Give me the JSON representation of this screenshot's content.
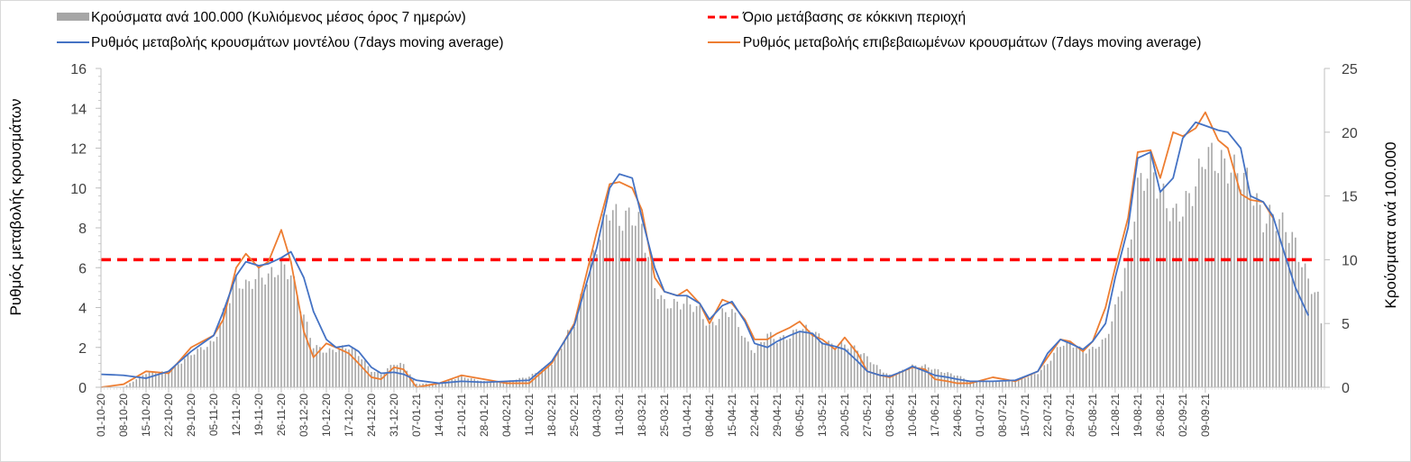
{
  "chart_data": {
    "type": "bar+line",
    "legend_position": "top",
    "grid": false,
    "x_tick_labels": [
      "01-10-20",
      "08-10-20",
      "15-10-20",
      "22-10-20",
      "29-10-20",
      "05-11-20",
      "12-11-20",
      "19-11-20",
      "26-11-20",
      "03-12-20",
      "10-12-20",
      "17-12-20",
      "24-12-20",
      "31-12-20",
      "07-01-21",
      "14-01-21",
      "21-01-21",
      "28-01-21",
      "04-02-21",
      "11-02-21",
      "18-02-21",
      "25-02-21",
      "04-03-21",
      "11-03-21",
      "18-03-21",
      "25-03-21",
      "01-04-21",
      "08-04-21",
      "15-04-21",
      "22-04-21",
      "29-04-21",
      "06-05-21",
      "13-05-21",
      "20-05-21",
      "27-05-21",
      "03-06-21",
      "10-06-21",
      "17-06-21",
      "24-06-21",
      "01-07-21",
      "08-07-21",
      "15-07-21",
      "22-07-21",
      "29-07-21",
      "05-08-21",
      "12-08-21",
      "19-08-21",
      "26-08-21",
      "02-09-21",
      "09-09-21"
    ],
    "y_left": {
      "label": "Ρυθμός μεταβολής κρουσμάτων",
      "min": 0,
      "max": 16,
      "ticks": [
        0,
        2,
        4,
        6,
        8,
        10,
        12,
        14,
        16
      ]
    },
    "y_right": {
      "label": "Κρούσματα ανά 100.000",
      "min": 0,
      "max": 25,
      "ticks": [
        0,
        5,
        10,
        15,
        20,
        25
      ]
    },
    "series": [
      {
        "name": "Κρούσματα ανά 100.000 (Κυλιόμενος μέσος όρος 7 ημερών)",
        "kind": "bar",
        "axis": "right",
        "color": "#a6a6a6",
        "points": [
          [
            0,
            0.0
          ],
          [
            7,
            0.0
          ],
          [
            14,
            1.2
          ],
          [
            21,
            1.3
          ],
          [
            28,
            2.8
          ],
          [
            35,
            3.8
          ],
          [
            38,
            6.2
          ],
          [
            42,
            9.0
          ],
          [
            45,
            8.5
          ],
          [
            49,
            9.4
          ],
          [
            52,
            9.3
          ],
          [
            56,
            10.2
          ],
          [
            59,
            9.6
          ],
          [
            63,
            6.0
          ],
          [
            66,
            3.5
          ],
          [
            70,
            3.0
          ],
          [
            73,
            3.2
          ],
          [
            77,
            3.4
          ],
          [
            80,
            2.8
          ],
          [
            84,
            1.4
          ],
          [
            87,
            1.1
          ],
          [
            91,
            2.0
          ],
          [
            94,
            1.9
          ],
          [
            98,
            0.3
          ],
          [
            105,
            0.3
          ],
          [
            112,
            0.9
          ],
          [
            119,
            0.5
          ],
          [
            126,
            0.5
          ],
          [
            133,
            0.9
          ],
          [
            140,
            2.0
          ],
          [
            147,
            5.5
          ],
          [
            154,
            12.0
          ],
          [
            158,
            15.2
          ],
          [
            161,
            14.0
          ],
          [
            165,
            14.5
          ],
          [
            168,
            13.5
          ],
          [
            172,
            8.5
          ],
          [
            175,
            7.0
          ],
          [
            179,
            7.0
          ],
          [
            182,
            7.2
          ],
          [
            186,
            6.5
          ],
          [
            189,
            5.0
          ],
          [
            193,
            6.2
          ],
          [
            196,
            6.5
          ],
          [
            200,
            4.0
          ],
          [
            203,
            3.0
          ],
          [
            207,
            4.5
          ],
          [
            210,
            4.0
          ],
          [
            214,
            4.3
          ],
          [
            217,
            5.0
          ],
          [
            221,
            4.8
          ],
          [
            224,
            4.0
          ],
          [
            228,
            3.4
          ],
          [
            231,
            3.6
          ],
          [
            235,
            3.2
          ],
          [
            238,
            2.5
          ],
          [
            242,
            1.5
          ],
          [
            245,
            1.0
          ],
          [
            249,
            1.4
          ],
          [
            252,
            1.8
          ],
          [
            256,
            1.8
          ],
          [
            259,
            1.5
          ],
          [
            263,
            1.2
          ],
          [
            266,
            1.0
          ],
          [
            270,
            0.5
          ],
          [
            277,
            0.5
          ],
          [
            284,
            0.5
          ],
          [
            291,
            1.2
          ],
          [
            294,
            2.0
          ],
          [
            298,
            3.6
          ],
          [
            301,
            3.8
          ],
          [
            305,
            3.0
          ],
          [
            308,
            3.2
          ],
          [
            312,
            4.0
          ],
          [
            315,
            6.5
          ],
          [
            319,
            11.0
          ],
          [
            322,
            16.8
          ],
          [
            326,
            18.6
          ],
          [
            329,
            16.5
          ],
          [
            333,
            14.5
          ],
          [
            336,
            15.0
          ],
          [
            340,
            17.0
          ],
          [
            343,
            19.8
          ],
          [
            347,
            19.0
          ],
          [
            350,
            18.5
          ],
          [
            354,
            18.0
          ],
          [
            357,
            17.0
          ],
          [
            361,
            14.0
          ],
          [
            364,
            14.5
          ],
          [
            368,
            13.5
          ],
          [
            371,
            12.0
          ],
          [
            375,
            9.0
          ],
          [
            378,
            7.5
          ],
          [
            379,
            5.5
          ]
        ]
      },
      {
        "name": "Ρυθμός μεταβολής κρουσμάτων μοντέλου (7days moving average)",
        "kind": "line",
        "axis": "left",
        "color": "#4472c4",
        "points": [
          [
            0,
            0.65
          ],
          [
            7,
            0.6
          ],
          [
            14,
            0.45
          ],
          [
            21,
            0.8
          ],
          [
            28,
            1.8
          ],
          [
            35,
            2.6
          ],
          [
            38,
            3.8
          ],
          [
            42,
            5.6
          ],
          [
            45,
            6.3
          ],
          [
            49,
            6.1
          ],
          [
            52,
            6.2
          ],
          [
            56,
            6.5
          ],
          [
            59,
            6.8
          ],
          [
            63,
            5.5
          ],
          [
            66,
            3.8
          ],
          [
            70,
            2.4
          ],
          [
            73,
            2.0
          ],
          [
            77,
            2.1
          ],
          [
            80,
            1.8
          ],
          [
            84,
            1.0
          ],
          [
            87,
            0.7
          ],
          [
            91,
            0.75
          ],
          [
            94,
            0.65
          ],
          [
            98,
            0.35
          ],
          [
            105,
            0.2
          ],
          [
            112,
            0.3
          ],
          [
            119,
            0.25
          ],
          [
            126,
            0.3
          ],
          [
            133,
            0.35
          ],
          [
            140,
            1.3
          ],
          [
            147,
            3.1
          ],
          [
            154,
            7.0
          ],
          [
            158,
            10.0
          ],
          [
            161,
            10.7
          ],
          [
            165,
            10.5
          ],
          [
            168,
            8.5
          ],
          [
            172,
            6.0
          ],
          [
            175,
            4.8
          ],
          [
            179,
            4.6
          ],
          [
            182,
            4.6
          ],
          [
            186,
            4.2
          ],
          [
            189,
            3.4
          ],
          [
            193,
            4.1
          ],
          [
            196,
            4.3
          ],
          [
            200,
            3.3
          ],
          [
            203,
            2.2
          ],
          [
            207,
            2.0
          ],
          [
            210,
            2.3
          ],
          [
            214,
            2.6
          ],
          [
            217,
            2.8
          ],
          [
            221,
            2.7
          ],
          [
            224,
            2.2
          ],
          [
            228,
            2.05
          ],
          [
            231,
            1.9
          ],
          [
            235,
            1.3
          ],
          [
            238,
            0.8
          ],
          [
            242,
            0.6
          ],
          [
            245,
            0.55
          ],
          [
            249,
            0.8
          ],
          [
            252,
            1.05
          ],
          [
            256,
            0.8
          ],
          [
            259,
            0.6
          ],
          [
            263,
            0.5
          ],
          [
            266,
            0.4
          ],
          [
            270,
            0.3
          ],
          [
            277,
            0.3
          ],
          [
            284,
            0.35
          ],
          [
            291,
            0.8
          ],
          [
            294,
            1.7
          ],
          [
            298,
            2.4
          ],
          [
            301,
            2.2
          ],
          [
            305,
            1.9
          ],
          [
            308,
            2.3
          ],
          [
            312,
            3.2
          ],
          [
            315,
            5.5
          ],
          [
            319,
            8.0
          ],
          [
            322,
            11.5
          ],
          [
            326,
            11.8
          ],
          [
            329,
            9.8
          ],
          [
            333,
            10.5
          ],
          [
            336,
            12.5
          ],
          [
            340,
            13.3
          ],
          [
            347,
            12.9
          ],
          [
            350,
            12.8
          ],
          [
            354,
            12.0
          ],
          [
            357,
            9.6
          ],
          [
            361,
            9.3
          ],
          [
            364,
            8.6
          ],
          [
            368,
            6.5
          ],
          [
            371,
            5.0
          ],
          [
            375,
            3.6
          ]
        ]
      },
      {
        "name": "Ρυθμός μεταβολής επιβεβαιωμένων κρουσμάτων (7days moving average)",
        "kind": "line",
        "axis": "left",
        "color": "#ed7d31",
        "points": [
          [
            0,
            0.0
          ],
          [
            7,
            0.15
          ],
          [
            14,
            0.8
          ],
          [
            21,
            0.7
          ],
          [
            28,
            2.0
          ],
          [
            35,
            2.6
          ],
          [
            38,
            3.4
          ],
          [
            42,
            6.0
          ],
          [
            45,
            6.7
          ],
          [
            49,
            6.0
          ],
          [
            52,
            6.3
          ],
          [
            56,
            7.9
          ],
          [
            59,
            6.3
          ],
          [
            63,
            2.8
          ],
          [
            66,
            1.5
          ],
          [
            70,
            2.2
          ],
          [
            73,
            2.0
          ],
          [
            77,
            1.7
          ],
          [
            80,
            1.2
          ],
          [
            84,
            0.5
          ],
          [
            87,
            0.4
          ],
          [
            91,
            1.0
          ],
          [
            94,
            0.9
          ],
          [
            98,
            0.0
          ],
          [
            105,
            0.2
          ],
          [
            112,
            0.6
          ],
          [
            119,
            0.4
          ],
          [
            126,
            0.2
          ],
          [
            133,
            0.2
          ],
          [
            140,
            1.2
          ],
          [
            147,
            3.2
          ],
          [
            154,
            7.8
          ],
          [
            158,
            10.2
          ],
          [
            161,
            10.3
          ],
          [
            165,
            10.0
          ],
          [
            168,
            8.9
          ],
          [
            172,
            5.5
          ],
          [
            175,
            4.8
          ],
          [
            179,
            4.6
          ],
          [
            182,
            4.9
          ],
          [
            186,
            4.2
          ],
          [
            189,
            3.2
          ],
          [
            193,
            4.4
          ],
          [
            196,
            4.2
          ],
          [
            200,
            3.4
          ],
          [
            203,
            2.4
          ],
          [
            207,
            2.4
          ],
          [
            210,
            2.7
          ],
          [
            214,
            3.0
          ],
          [
            217,
            3.3
          ],
          [
            221,
            2.6
          ],
          [
            224,
            2.4
          ],
          [
            228,
            1.9
          ],
          [
            231,
            2.5
          ],
          [
            235,
            1.7
          ],
          [
            238,
            0.8
          ],
          [
            242,
            0.6
          ],
          [
            245,
            0.5
          ],
          [
            249,
            0.8
          ],
          [
            252,
            1.0
          ],
          [
            256,
            0.9
          ],
          [
            259,
            0.4
          ],
          [
            263,
            0.3
          ],
          [
            266,
            0.2
          ],
          [
            270,
            0.2
          ],
          [
            277,
            0.5
          ],
          [
            284,
            0.3
          ],
          [
            291,
            0.8
          ],
          [
            294,
            1.5
          ],
          [
            298,
            2.4
          ],
          [
            301,
            2.3
          ],
          [
            305,
            1.8
          ],
          [
            308,
            2.3
          ],
          [
            312,
            4.0
          ],
          [
            315,
            6.0
          ],
          [
            319,
            8.5
          ],
          [
            322,
            11.8
          ],
          [
            326,
            11.9
          ],
          [
            329,
            10.5
          ],
          [
            333,
            12.8
          ],
          [
            336,
            12.6
          ],
          [
            340,
            13.0
          ],
          [
            343,
            13.8
          ],
          [
            347,
            12.4
          ],
          [
            350,
            12.0
          ],
          [
            354,
            9.7
          ],
          [
            357,
            9.4
          ],
          [
            361,
            9.3
          ],
          [
            364,
            8.5
          ]
        ]
      },
      {
        "name": "Όριο μετάβασης σε κόκκινη περιοχή",
        "kind": "hline",
        "axis": "right",
        "color": "#ff0000",
        "value": 10
      }
    ]
  }
}
